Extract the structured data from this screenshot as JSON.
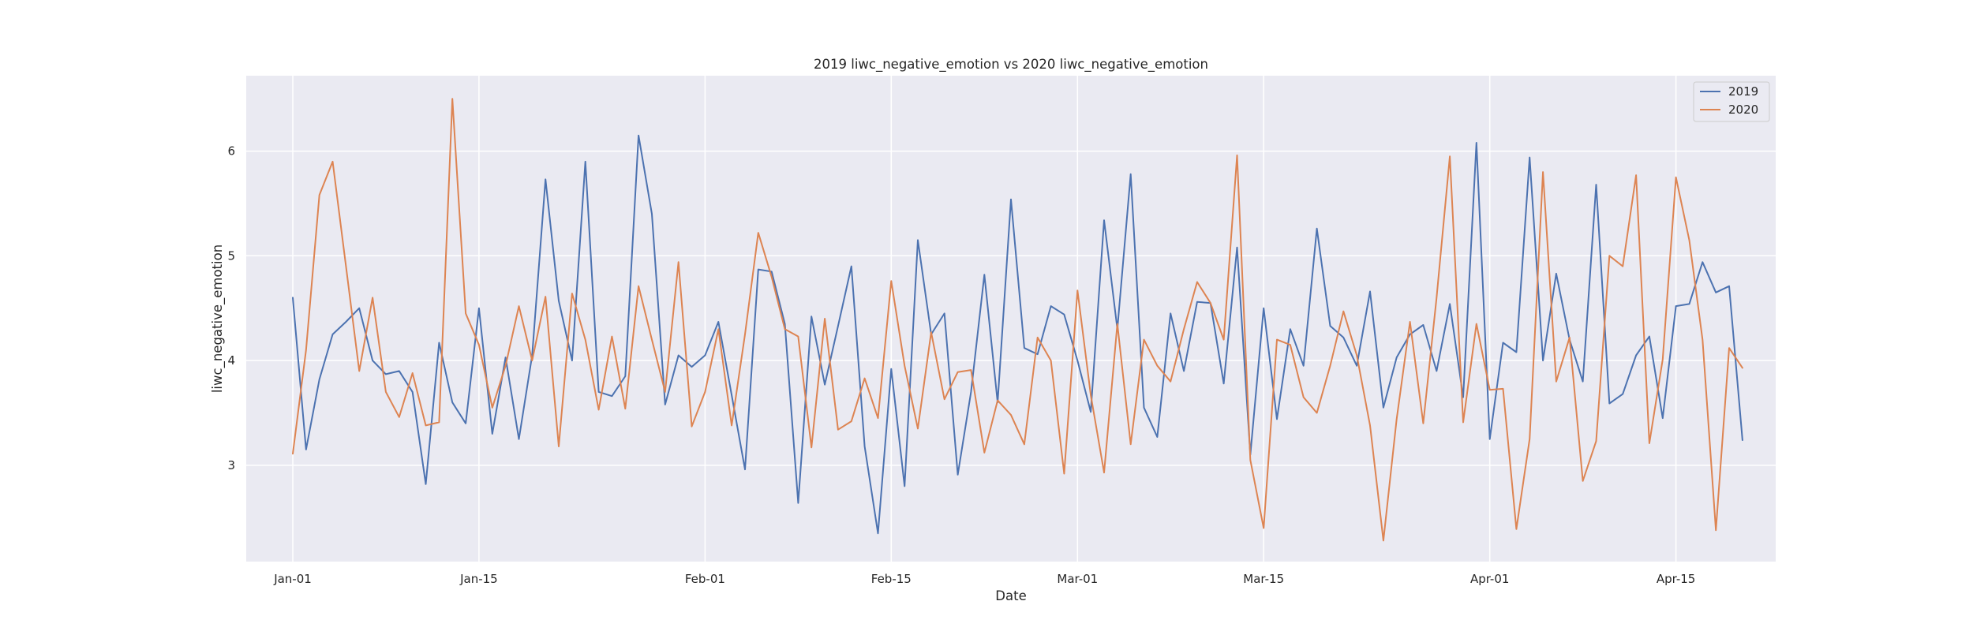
{
  "chart_data": {
    "type": "line",
    "title": "2019 liwc_negative_emotion vs 2020 liwc_negative_emotion",
    "xlabel": "Date",
    "ylabel": "liwc_negative_emotion",
    "x_start": "Jan-01",
    "xlim": [
      -3.5,
      111.5
    ],
    "ylim": [
      2.08,
      6.72
    ],
    "x_ticks": [
      {
        "day": 0,
        "label": "Jan-01"
      },
      {
        "day": 14,
        "label": "Jan-15"
      },
      {
        "day": 31,
        "label": "Feb-01"
      },
      {
        "day": 45,
        "label": "Feb-15"
      },
      {
        "day": 59,
        "label": "Mar-01"
      },
      {
        "day": 73,
        "label": "Mar-15"
      },
      {
        "day": 90,
        "label": "Apr-01"
      },
      {
        "day": 104,
        "label": "Apr-15"
      }
    ],
    "y_ticks": [
      3,
      4,
      5,
      6
    ],
    "grid": true,
    "legend_position": "top-right",
    "series": [
      {
        "name": "2019",
        "color": "#4c72b0",
        "values": [
          4.6,
          3.15,
          3.82,
          4.25,
          4.37,
          4.5,
          4.0,
          3.87,
          3.9,
          3.7,
          2.82,
          4.17,
          3.6,
          3.4,
          4.5,
          3.3,
          4.03,
          3.25,
          4.05,
          5.73,
          4.57,
          4.0,
          5.9,
          3.7,
          3.66,
          3.85,
          6.15,
          5.4,
          3.58,
          4.05,
          3.94,
          4.05,
          4.37,
          3.67,
          2.96,
          4.87,
          4.85,
          4.35,
          2.64,
          4.42,
          3.77,
          4.33,
          4.9,
          3.18,
          2.35,
          3.92,
          2.8,
          5.15,
          4.25,
          4.45,
          2.91,
          3.7,
          4.82,
          3.6,
          5.54,
          4.12,
          4.06,
          4.52,
          4.44,
          4.0,
          3.51,
          5.34,
          4.3,
          5.78,
          3.55,
          3.27,
          4.45,
          3.9,
          4.56,
          4.55,
          3.78,
          5.08,
          3.1,
          4.5,
          3.44,
          4.3,
          3.95,
          5.26,
          4.33,
          4.22,
          3.95,
          4.66,
          3.55,
          4.03,
          4.25,
          4.34,
          3.9,
          4.54,
          3.65,
          6.08,
          3.25,
          4.17,
          4.08,
          5.94,
          4.0,
          4.83,
          4.2,
          3.8,
          5.68,
          3.59,
          3.68,
          4.05,
          4.23,
          3.45,
          4.52,
          4.54,
          4.94,
          4.65,
          4.71,
          3.24
        ]
      },
      {
        "name": "2020",
        "color": "#dd8452",
        "values": [
          3.11,
          4.1,
          5.58,
          5.9,
          4.9,
          3.9,
          4.6,
          3.7,
          3.46,
          3.88,
          3.38,
          3.41,
          6.5,
          4.45,
          4.15,
          3.55,
          3.95,
          4.52,
          4.0,
          4.61,
          3.18,
          4.64,
          4.2,
          3.53,
          4.23,
          3.54,
          4.71,
          4.2,
          3.7,
          4.94,
          3.37,
          3.7,
          4.3,
          3.38,
          4.25,
          5.22,
          4.8,
          4.3,
          4.23,
          3.17,
          4.4,
          3.34,
          3.42,
          3.83,
          3.45,
          4.76,
          3.95,
          3.35,
          4.27,
          3.63,
          3.89,
          3.91,
          3.12,
          3.62,
          3.48,
          3.2,
          4.22,
          4.0,
          2.92,
          4.67,
          3.67,
          2.93,
          4.35,
          3.2,
          4.2,
          3.95,
          3.8,
          4.3,
          4.75,
          4.55,
          4.2,
          5.96,
          3.05,
          2.4,
          4.2,
          4.15,
          3.65,
          3.5,
          3.95,
          4.47,
          4.05,
          3.38,
          2.28,
          3.44,
          4.37,
          3.4,
          4.6,
          5.95,
          3.41,
          4.35,
          3.72,
          3.73,
          2.39,
          3.25,
          5.8,
          3.8,
          4.22,
          2.85,
          3.23,
          5.0,
          4.9,
          5.77,
          3.21,
          4.01,
          5.75,
          5.15,
          4.2,
          2.38,
          4.12,
          3.93
        ]
      }
    ]
  }
}
